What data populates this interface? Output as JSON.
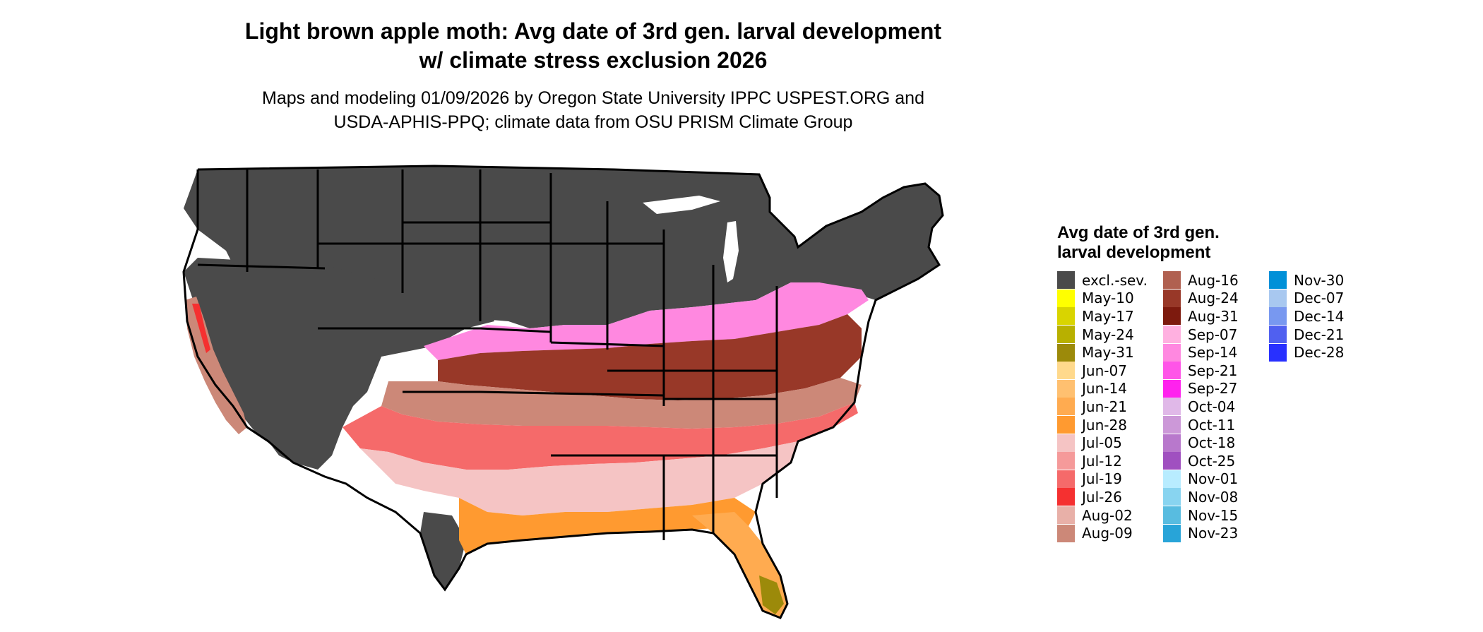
{
  "title_lines": [
    "Light brown apple moth: Avg date of 3rd gen. larval development",
    "w/ climate stress exclusion 2026"
  ],
  "subtitle_lines": [
    "Maps and modeling 01/09/2026 by Oregon State University IPPC USPEST.ORG and",
    "USDA-APHIS-PPQ; climate data from OSU PRISM Climate Group"
  ],
  "legend": {
    "title": "Avg date of 3rd gen. larval development",
    "items": [
      {
        "label": "excl.-sev.",
        "color": "#4a4a4a"
      },
      {
        "label": "May-10",
        "color": "#ffff00"
      },
      {
        "label": "May-17",
        "color": "#d9d400"
      },
      {
        "label": "May-24",
        "color": "#b8b000"
      },
      {
        "label": "May-31",
        "color": "#9c8a0a"
      },
      {
        "label": "Jun-07",
        "color": "#ffd98c"
      },
      {
        "label": "Jun-14",
        "color": "#ffc070"
      },
      {
        "label": "Jun-21",
        "color": "#ffab50"
      },
      {
        "label": "Jun-28",
        "color": "#ff9a30"
      },
      {
        "label": "Jul-05",
        "color": "#f5c4c4"
      },
      {
        "label": "Jul-12",
        "color": "#f59a9a"
      },
      {
        "label": "Jul-19",
        "color": "#f56a6a"
      },
      {
        "label": "Jul-26",
        "color": "#f53030"
      },
      {
        "label": "Aug-02",
        "color": "#e8b0a8"
      },
      {
        "label": "Aug-09",
        "color": "#cc8878"
      },
      {
        "label": "Aug-16",
        "color": "#b06050"
      },
      {
        "label": "Aug-24",
        "color": "#983828"
      },
      {
        "label": "Aug-31",
        "color": "#7d1a0e"
      },
      {
        "label": "Sep-07",
        "color": "#ffb0e0"
      },
      {
        "label": "Sep-14",
        "color": "#ff88e0"
      },
      {
        "label": "Sep-21",
        "color": "#ff55e8"
      },
      {
        "label": "Sep-27",
        "color": "#ff22ee"
      },
      {
        "label": "Oct-04",
        "color": "#e0b8e8"
      },
      {
        "label": "Oct-11",
        "color": "#cc98d8"
      },
      {
        "label": "Oct-18",
        "color": "#b878cc"
      },
      {
        "label": "Oct-25",
        "color": "#a050c0"
      },
      {
        "label": "Nov-01",
        "color": "#b8ecff"
      },
      {
        "label": "Nov-08",
        "color": "#88d4f0"
      },
      {
        "label": "Nov-15",
        "color": "#58bce0"
      },
      {
        "label": "Nov-23",
        "color": "#28a4d8"
      },
      {
        "label": "Nov-30",
        "color": "#0090d8"
      },
      {
        "label": "Dec-07",
        "color": "#a8c8f0"
      },
      {
        "label": "Dec-14",
        "color": "#7898f0"
      },
      {
        "label": "Dec-21",
        "color": "#5060f0"
      },
      {
        "label": "Dec-28",
        "color": "#2830ff"
      }
    ]
  }
}
